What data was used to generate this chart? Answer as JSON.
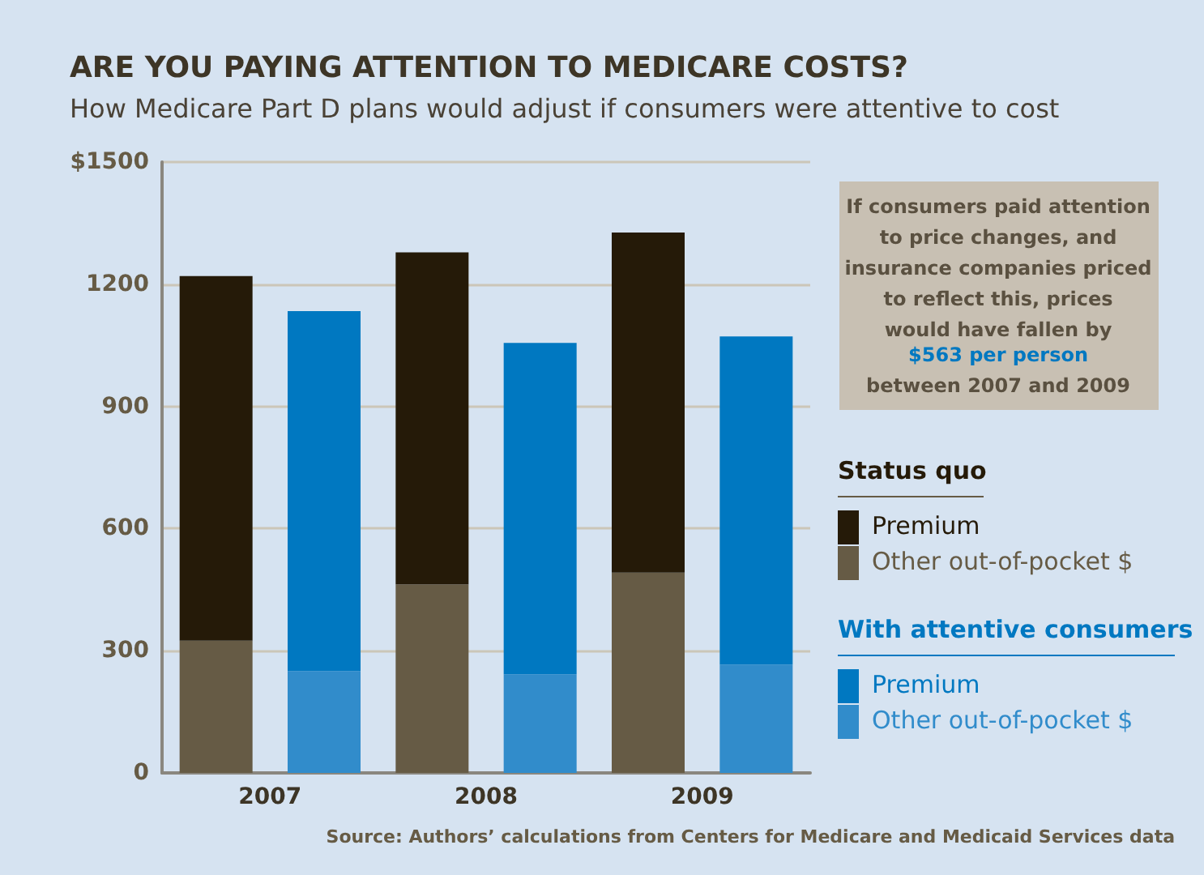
{
  "chart_data": {
    "type": "bar",
    "stacked": true,
    "title": "ARE YOU PAYING ATTENTION TO MEDICARE COSTS?",
    "subtitle": "How Medicare Part D plans would adjust if consumers were attentive to cost",
    "categories": [
      "2007",
      null,
      "2008",
      null,
      "2009",
      null
    ],
    "series": [
      {
        "name": "Other out-of-pocket $",
        "colors": [
          "#665b45",
          "#318ccb",
          "#665b45",
          "#318ccb",
          "#665b45",
          "#318ccb"
        ],
        "values": [
          325,
          250,
          463,
          242,
          492,
          266
        ]
      },
      {
        "name": "Premium",
        "colors": [
          "#251a08",
          "#0078c1",
          "#251a08",
          "#0078c1",
          "#251a08",
          "#0078c1"
        ],
        "values": [
          895,
          884,
          815,
          814,
          835,
          806
        ]
      }
    ],
    "ylim": [
      0,
      1500
    ],
    "yticks": [
      0,
      300,
      600,
      900,
      1200,
      {
        "value": 1500,
        "label": "$1500"
      }
    ],
    "grid": "y",
    "legend": "right",
    "annotations": [
      "If consumers paid attention to price changes, and insurance companies priced to reflect this, prices would have fallen by",
      "$563 per person",
      "between 2007 and 2009",
      "Source: Authors’ calculations from Centers for Medicare and Medicaid Services data",
      "Status quo",
      "With attentive consumers"
    ]
  }
}
